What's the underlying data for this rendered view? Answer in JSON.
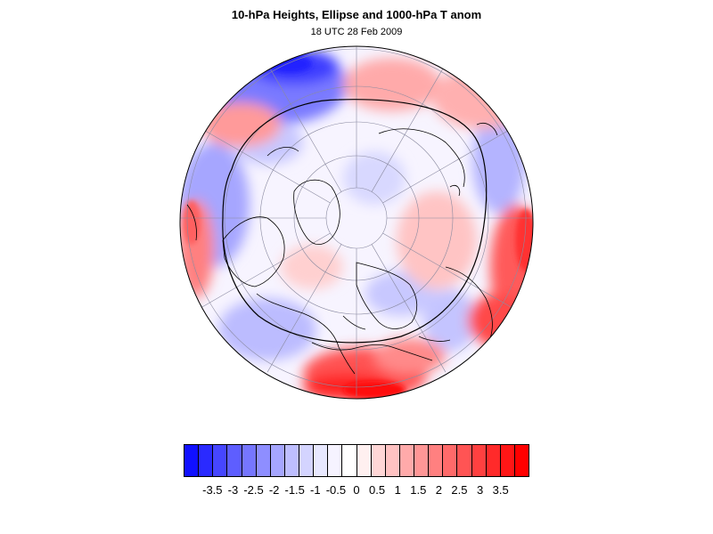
{
  "title": "10-hPa Heights, Ellipse and 1000-hPa T anom",
  "subtitle": "18 UTC 28 Feb 2009",
  "map": {
    "projection": "polar-stereographic-north",
    "features": [
      "temperature-anomaly-shading",
      "coastlines",
      "graticule",
      "vortex-ellipse"
    ]
  },
  "colorbar": {
    "colors": [
      "#1010ff",
      "#2a2aff",
      "#4646ff",
      "#5e5eff",
      "#7676ff",
      "#8e8eff",
      "#a6a6ff",
      "#bebeff",
      "#d4d4ff",
      "#e8e8ff",
      "#f6f3ff",
      "#ffffff",
      "#fff0f0",
      "#ffd6d6",
      "#ffc2c2",
      "#ffaaaa",
      "#ff9696",
      "#ff8080",
      "#ff6a6a",
      "#ff5454",
      "#ff4040",
      "#ff2a2a",
      "#ff1616",
      "#ff0000"
    ],
    "tick_labels": [
      "-3.5",
      "-3",
      "-2.5",
      "-2",
      "-1.5",
      "-1",
      "-0.5",
      "0",
      "0.5",
      "1",
      "1.5",
      "2",
      "2.5",
      "3",
      "3.5"
    ]
  },
  "colors": {
    "negative": "#1a1aff",
    "positive": "#ff0000",
    "neutral": "#ffffff"
  }
}
